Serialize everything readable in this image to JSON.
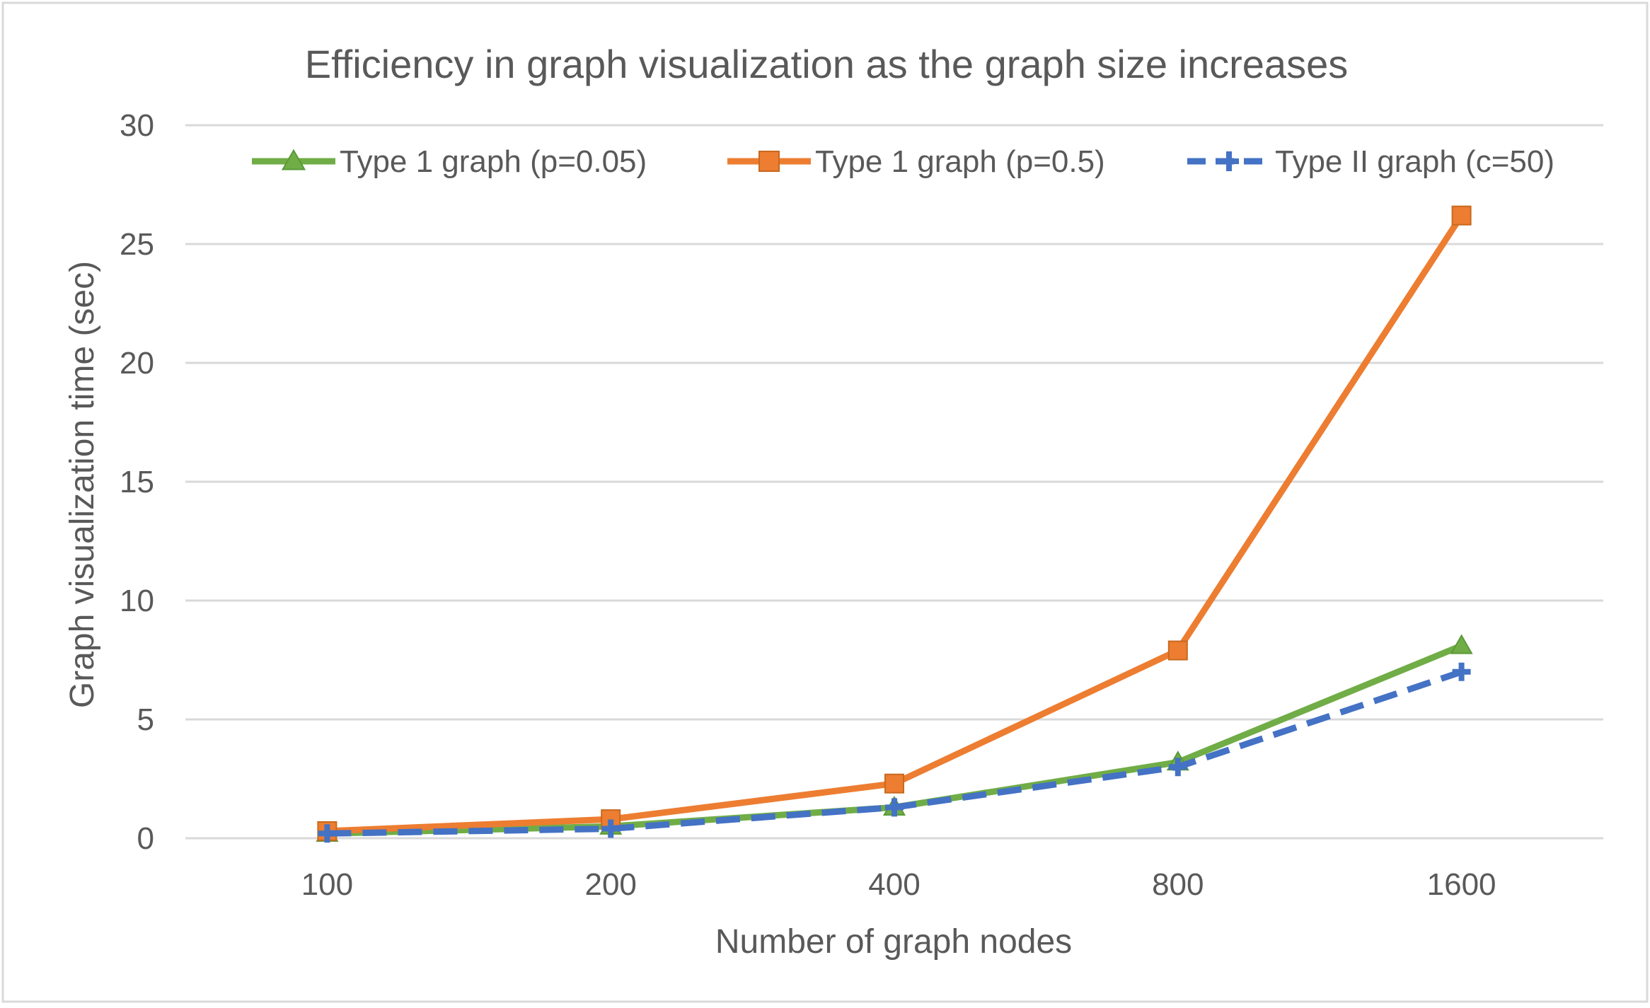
{
  "chart_data": {
    "type": "line",
    "title": "Efficiency in graph visualization as the graph size increases",
    "xlabel": "Number of graph nodes",
    "ylabel": "Graph visualization time (sec)",
    "categories": [
      "100",
      "200",
      "400",
      "800",
      "1600"
    ],
    "y_ticks": [
      "0",
      "5",
      "10",
      "15",
      "20",
      "25",
      "30"
    ],
    "ylim": [
      0,
      30
    ],
    "grid": true,
    "legend_position": "top",
    "series": [
      {
        "name": "Type 1 graph (p=0.05)",
        "values": [
          0.2,
          0.5,
          1.3,
          3.2,
          8.1
        ],
        "color": "#70ad47",
        "marker": "triangle",
        "dash": "solid"
      },
      {
        "name": "Type 1 graph (p=0.5)",
        "values": [
          0.3,
          0.8,
          2.3,
          7.9,
          26.2
        ],
        "color": "#ed7d31",
        "marker": "square",
        "dash": "solid"
      },
      {
        "name": "Type II graph (c=50)",
        "values": [
          0.2,
          0.4,
          1.3,
          3.0,
          7.0
        ],
        "color": "#4472c4",
        "marker": "plus",
        "dash": "dashed"
      }
    ]
  }
}
